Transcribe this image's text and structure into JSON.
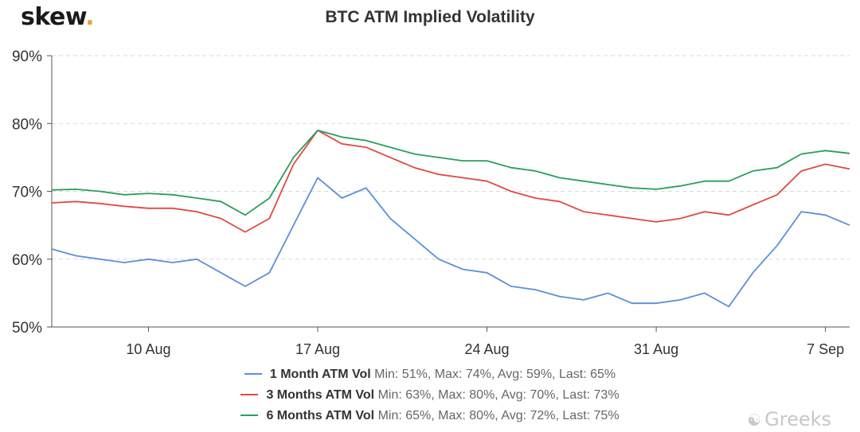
{
  "logo": {
    "text": "skew",
    "dot": "."
  },
  "watermark": {
    "icon": "wechat-icon",
    "text": "Greeks"
  },
  "colors": {
    "one_month": "#5b8fd9",
    "three_months": "#e04a3f",
    "six_months": "#2a9e5c",
    "grid": "#d9d9d9"
  },
  "chart_data": {
    "type": "line",
    "title": "BTC ATM Implied Volatility",
    "xlabel": "",
    "ylabel": "",
    "ylim": [
      50,
      90
    ],
    "y_ticks": [
      "50%",
      "60%",
      "70%",
      "80%",
      "90%"
    ],
    "x_range": [
      "2020-08-06",
      "2020-09-08"
    ],
    "x_ticks": [
      {
        "label": "10 Aug",
        "date": "2020-08-10"
      },
      {
        "label": "17 Aug",
        "date": "2020-08-17"
      },
      {
        "label": "24 Aug",
        "date": "2020-08-24"
      },
      {
        "label": "31 Aug",
        "date": "2020-08-31"
      },
      {
        "label": "7 Sep",
        "date": "2020-09-07"
      }
    ],
    "grid": "horizontal dashed",
    "legend_position": "bottom",
    "x": [
      "2020-08-06",
      "2020-08-07",
      "2020-08-08",
      "2020-08-09",
      "2020-08-10",
      "2020-08-11",
      "2020-08-12",
      "2020-08-13",
      "2020-08-14",
      "2020-08-15",
      "2020-08-16",
      "2020-08-17",
      "2020-08-18",
      "2020-08-19",
      "2020-08-20",
      "2020-08-21",
      "2020-08-22",
      "2020-08-23",
      "2020-08-24",
      "2020-08-25",
      "2020-08-26",
      "2020-08-27",
      "2020-08-28",
      "2020-08-29",
      "2020-08-30",
      "2020-08-31",
      "2020-09-01",
      "2020-09-02",
      "2020-09-03",
      "2020-09-04",
      "2020-09-05",
      "2020-09-06",
      "2020-09-07",
      "2020-09-08"
    ],
    "series": [
      {
        "name": "1 Month ATM Vol",
        "color": "#5b8fd9",
        "stats": "Min: 51%, Max: 74%, Avg: 59%, Last: 65%",
        "values": [
          61.5,
          60.5,
          60,
          59.5,
          60,
          59.5,
          60,
          58,
          56,
          58,
          65,
          72,
          69,
          70.5,
          66,
          63,
          60,
          58.5,
          58,
          56,
          55.5,
          54.5,
          54,
          55,
          53.5,
          53.5,
          54,
          55,
          53,
          58,
          62,
          67,
          66.5,
          65
        ]
      },
      {
        "name": "3 Months ATM Vol",
        "color": "#e04a3f",
        "stats": "Min: 63%, Max: 80%, Avg: 70%, Last: 73%",
        "values": [
          68.3,
          68.5,
          68.2,
          67.8,
          67.5,
          67.5,
          67,
          66,
          64,
          66,
          74,
          79,
          77,
          76.5,
          75,
          73.5,
          72.5,
          72,
          71.5,
          70,
          69,
          68.5,
          67,
          66.5,
          66,
          65.5,
          66,
          67,
          66.5,
          68,
          69.5,
          73,
          74,
          73.3
        ]
      },
      {
        "name": "6 Months ATM Vol",
        "color": "#2a9e5c",
        "stats": "Min: 65%, Max: 80%, Avg: 72%, Last: 75%",
        "values": [
          70.2,
          70.3,
          70,
          69.5,
          69.7,
          69.5,
          69,
          68.5,
          66.5,
          69,
          75,
          79,
          78,
          77.5,
          76.5,
          75.5,
          75,
          74.5,
          74.5,
          73.5,
          73,
          72,
          71.5,
          71,
          70.5,
          70.3,
          70.8,
          71.5,
          71.5,
          73,
          73.5,
          75.5,
          76,
          75.6
        ]
      }
    ]
  }
}
